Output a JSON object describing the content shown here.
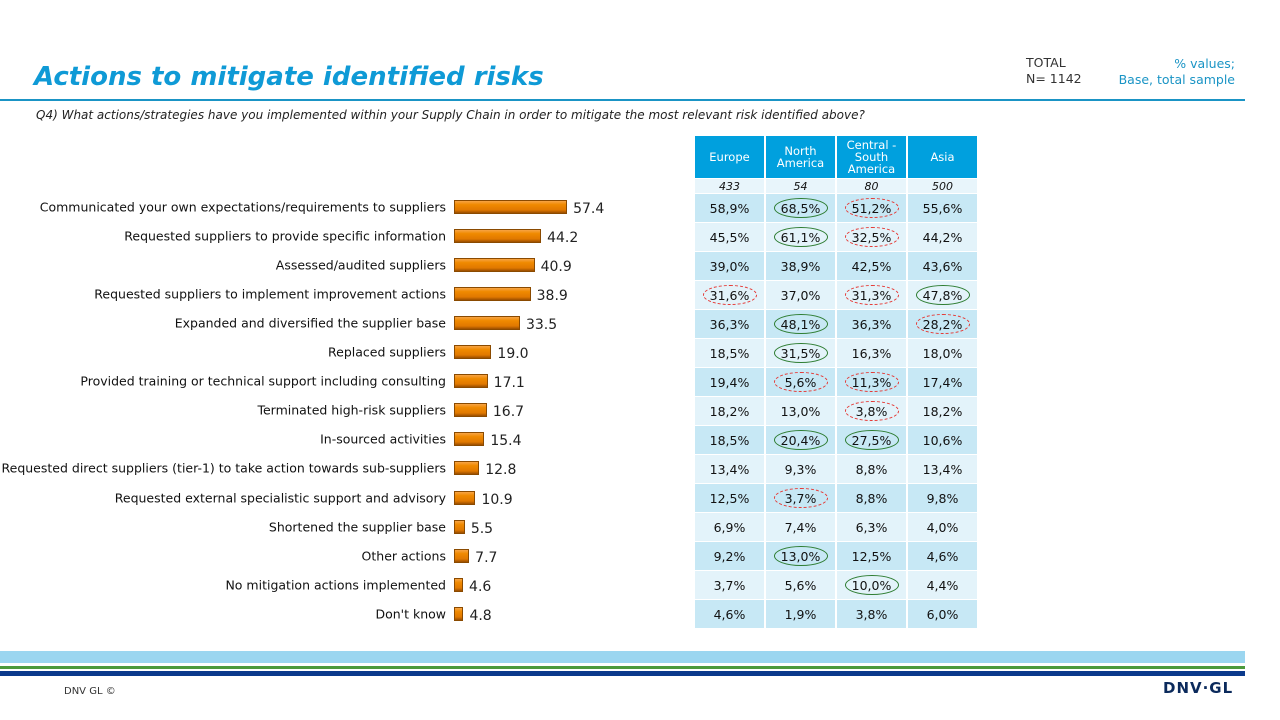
{
  "header": {
    "title": "Actions to mitigate identified risks",
    "question": "Q4) What actions/strategies have you implemented within your Supply Chain in order to mitigate the most relevant risk identified above?",
    "total_label": "TOTAL",
    "total_n": "N= 1142",
    "base_line1": "% values;",
    "base_line2": "Base, total sample"
  },
  "chart_data": {
    "type": "bar",
    "orientation": "horizontal",
    "categories": [
      "Communicated your own expectations/requirements to suppliers",
      "Requested suppliers to provide specific information",
      "Assessed/audited suppliers",
      "Requested suppliers to implement improvement actions",
      "Expanded and diversified the supplier base",
      "Replaced suppliers",
      "Provided training or technical support including consulting",
      "Terminated high-risk suppliers",
      "In-sourced activities",
      "Requested direct suppliers (tier-1) to take action towards sub-suppliers",
      "Requested external specialistic support and advisory",
      "Shortened the supplier base",
      "Other actions",
      "No mitigation actions implemented",
      "Don't know"
    ],
    "values": [
      57.4,
      44.2,
      40.9,
      38.9,
      33.5,
      19.0,
      17.1,
      16.7,
      15.4,
      12.8,
      10.9,
      5.5,
      7.7,
      4.6,
      4.8
    ],
    "value_labels": [
      "57.4",
      "44.2",
      "40.9",
      "38.9",
      "33.5",
      "19.0",
      "17.1",
      "16.7",
      "15.4",
      "12.8",
      "10.9",
      "5.5",
      "7.7",
      "4.6",
      "4.8"
    ],
    "bar_color": "#f08a00",
    "grid": false
  },
  "table": {
    "columns": [
      "Europe",
      "North America",
      "Central - South America",
      "Asia"
    ],
    "n": [
      "433",
      "54",
      "80",
      "500"
    ],
    "header_color": "#00a0de",
    "rows": [
      [
        "58,9%",
        "68,5%",
        "51,2%",
        "55,6%"
      ],
      [
        "45,5%",
        "61,1%",
        "32,5%",
        "44,2%"
      ],
      [
        "39,0%",
        "38,9%",
        "42,5%",
        "43,6%"
      ],
      [
        "31,6%",
        "37,0%",
        "31,3%",
        "47,8%"
      ],
      [
        "36,3%",
        "48,1%",
        "36,3%",
        "28,2%"
      ],
      [
        "18,5%",
        "31,5%",
        "16,3%",
        "18,0%"
      ],
      [
        "19,4%",
        "5,6%",
        "11,3%",
        "17,4%"
      ],
      [
        "18,2%",
        "13,0%",
        "3,8%",
        "18,2%"
      ],
      [
        "18,5%",
        "20,4%",
        "27,5%",
        "10,6%"
      ],
      [
        "13,4%",
        "9,3%",
        "8,8%",
        "13,4%"
      ],
      [
        "12,5%",
        "3,7%",
        "8,8%",
        "9,8%"
      ],
      [
        "6,9%",
        "7,4%",
        "6,3%",
        "4,0%"
      ],
      [
        "9,2%",
        "13,0%",
        "12,5%",
        "4,6%"
      ],
      [
        "3,7%",
        "5,6%",
        "10,0%",
        "4,4%"
      ],
      [
        "4,6%",
        "1,9%",
        "3,8%",
        "6,0%"
      ]
    ],
    "marks": [
      [
        "",
        "high",
        "low",
        ""
      ],
      [
        "",
        "high",
        "low",
        ""
      ],
      [
        "",
        "",
        "",
        ""
      ],
      [
        "low",
        "",
        "low",
        "high"
      ],
      [
        "",
        "high",
        "",
        "low"
      ],
      [
        "",
        "high",
        "",
        ""
      ],
      [
        "",
        "low",
        "low",
        ""
      ],
      [
        "",
        "",
        "low",
        ""
      ],
      [
        "",
        "high",
        "high",
        ""
      ],
      [
        "",
        "",
        "",
        ""
      ],
      [
        "",
        "low",
        "",
        ""
      ],
      [
        "",
        "",
        "",
        ""
      ],
      [
        "",
        "high",
        "",
        ""
      ],
      [
        "",
        "",
        "high",
        ""
      ],
      [
        "",
        "",
        "",
        ""
      ]
    ],
    "mark_colors": {
      "high": "#2e7d32",
      "low": "#e53935"
    }
  },
  "footer": {
    "copyright": "DNV GL ©",
    "logo": "DNV·GL"
  }
}
